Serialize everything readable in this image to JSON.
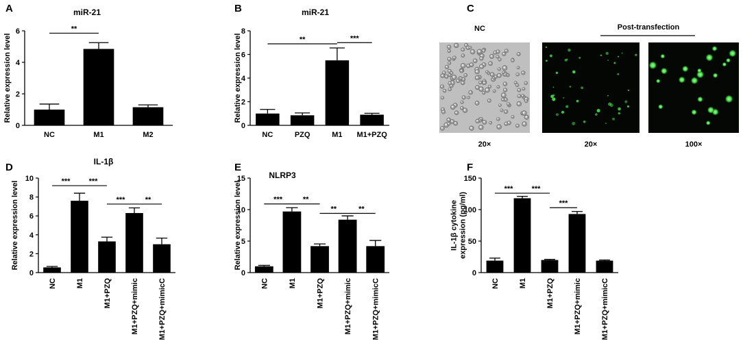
{
  "chart_data": [
    {
      "id": "A",
      "type": "bar",
      "panel": "A",
      "title": "miR-21",
      "ylabel": "Relative expression level",
      "xlabel": "",
      "categories": [
        "NC",
        "M1",
        "M2"
      ],
      "values": [
        1.0,
        4.85,
        1.15
      ],
      "errors": [
        0.35,
        0.4,
        0.15
      ],
      "ylim": [
        0,
        6
      ],
      "yticks": [
        0,
        2,
        4,
        6
      ],
      "xlabel_rotation": 0,
      "significance": [
        {
          "from": 0,
          "to": 1,
          "label": "**",
          "y": 5.85
        }
      ]
    },
    {
      "id": "B",
      "type": "bar",
      "panel": "B",
      "title": "miR-21",
      "ylabel": "Relative expression level",
      "xlabel": "",
      "categories": [
        "NC",
        "PZQ",
        "M1",
        "M1+PZQ"
      ],
      "values": [
        1.0,
        0.85,
        5.5,
        0.9
      ],
      "errors": [
        0.35,
        0.2,
        1.05,
        0.12
      ],
      "ylim": [
        0,
        8
      ],
      "yticks": [
        0,
        2,
        4,
        6,
        8
      ],
      "xlabel_rotation": 0,
      "significance": [
        {
          "from": 0,
          "to": 2,
          "label": "**",
          "y": 6.9
        },
        {
          "from": 2,
          "to": 3,
          "label": "***",
          "y": 7.0
        }
      ]
    },
    {
      "id": "D",
      "type": "bar",
      "panel": "D",
      "title": "IL-1β",
      "ylabel": "Relative expression level",
      "xlabel": "",
      "categories": [
        "NC",
        "M1",
        "M1+PZQ",
        "M1+PZQ+mimic",
        "M1+PZQ+mimicC"
      ],
      "values": [
        0.55,
        7.6,
        3.3,
        6.3,
        3.0
      ],
      "errors": [
        0.1,
        0.8,
        0.45,
        0.55,
        0.65
      ],
      "ylim": [
        0,
        10
      ],
      "yticks": [
        0,
        2,
        4,
        6,
        8,
        10
      ],
      "xlabel_rotation": -90,
      "significance": [
        {
          "from": 0,
          "to": 1,
          "label": "***",
          "y": 9.2
        },
        {
          "from": 1,
          "to": 2,
          "label": "***",
          "y": 9.2
        },
        {
          "from": 2,
          "to": 3,
          "label": "***",
          "y": 7.25
        },
        {
          "from": 3,
          "to": 4,
          "label": "**",
          "y": 7.25
        }
      ]
    },
    {
      "id": "E",
      "type": "bar",
      "panel": "E",
      "title": "NLRP3",
      "ylabel": "Relative expression level",
      "xlabel": "",
      "categories": [
        "NC",
        "M1",
        "M1+PZQ",
        "M1+PZQ+mimic",
        "M1+PZQ+mimicC"
      ],
      "values": [
        1.0,
        9.7,
        4.2,
        8.4,
        4.2
      ],
      "errors": [
        0.15,
        0.6,
        0.35,
        0.6,
        0.9
      ],
      "ylim": [
        0,
        15
      ],
      "yticks": [
        0,
        5,
        10,
        15
      ],
      "xlabel_rotation": -90,
      "significance": [
        {
          "from": 0,
          "to": 1,
          "label": "***",
          "y": 10.9
        },
        {
          "from": 1,
          "to": 2,
          "label": "**",
          "y": 10.9
        },
        {
          "from": 2,
          "to": 3,
          "label": "**",
          "y": 9.4
        },
        {
          "from": 3,
          "to": 4,
          "label": "**",
          "y": 9.4
        }
      ]
    },
    {
      "id": "F",
      "type": "bar",
      "panel": "F",
      "title": "",
      "ylabel": "IL-1β cytokine\nexpression (pg/ml)",
      "xlabel": "",
      "categories": [
        "NC",
        "M1",
        "M1+PZQ",
        "M1+PZQ+mimic",
        "M1+PZQ+mimicC"
      ],
      "values": [
        19,
        118,
        20,
        93,
        19
      ],
      "errors": [
        4,
        3,
        1,
        4,
        1
      ],
      "ylim": [
        0,
        150
      ],
      "yticks": [
        0,
        50,
        100,
        150
      ],
      "xlabel_rotation": -90,
      "significance": [
        {
          "from": 0,
          "to": 1,
          "label": "***",
          "y": 126
        },
        {
          "from": 1,
          "to": 2,
          "label": "***",
          "y": 126
        },
        {
          "from": 2,
          "to": 3,
          "label": "***",
          "y": 103
        }
      ]
    }
  ],
  "micrographs": {
    "panel": "C",
    "header_left": "NC",
    "header_right": "Post-transfection",
    "images": [
      {
        "label": "20×",
        "kind": "brightfield"
      },
      {
        "label": "20×",
        "kind": "fluorescence-low"
      },
      {
        "label": "100×",
        "kind": "fluorescence-high"
      }
    ]
  },
  "colors": {
    "bar": "#000000",
    "brightfield": "#bdbdbd",
    "fluorescence": "#33d13a",
    "dark": "#050805"
  }
}
